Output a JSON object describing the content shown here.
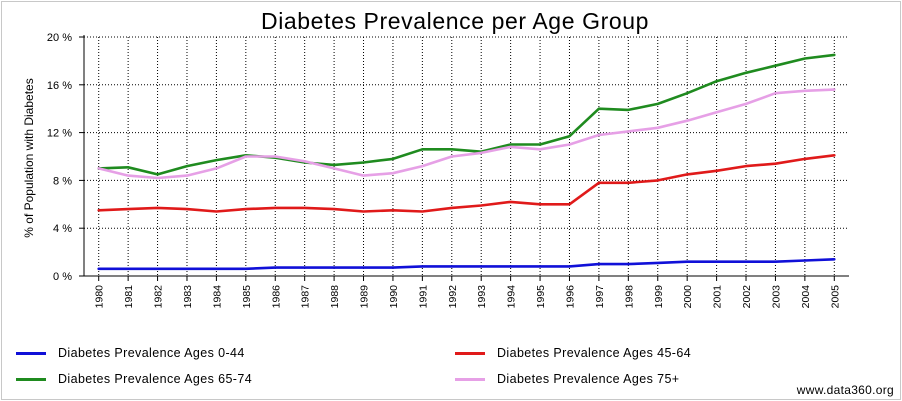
{
  "chart_data": {
    "type": "line",
    "title": "Diabetes Prevalence per Age Group",
    "ylabel": "% of Population with Diabetes",
    "xlabel": "",
    "ylim": [
      0,
      20
    ],
    "y_ticks": [
      0,
      4,
      8,
      12,
      16,
      20
    ],
    "y_tick_labels": [
      "0 %",
      "4 %",
      "8 %",
      "12 %",
      "16 %",
      "20 %"
    ],
    "grid": true,
    "legend_position": "bottom",
    "x": [
      "1980",
      "1981",
      "1982",
      "1983",
      "1984",
      "1985",
      "1986",
      "1987",
      "1988",
      "1989",
      "1990",
      "1991",
      "1992",
      "1993",
      "1994",
      "1995",
      "1996",
      "1997",
      "1998",
      "1999",
      "2000",
      "2001",
      "2002",
      "2003",
      "2004",
      "2005"
    ],
    "series": [
      {
        "name": "Diabetes Prevalence Ages 0-44",
        "color": "#1010d8",
        "values": [
          0.6,
          0.6,
          0.6,
          0.6,
          0.6,
          0.6,
          0.7,
          0.7,
          0.7,
          0.7,
          0.7,
          0.8,
          0.8,
          0.8,
          0.8,
          0.8,
          0.8,
          1.0,
          1.0,
          1.1,
          1.2,
          1.2,
          1.2,
          1.2,
          1.3,
          1.4
        ]
      },
      {
        "name": "Diabetes Prevalence Ages 45-64",
        "color": "#e01a1a",
        "values": [
          5.5,
          5.6,
          5.7,
          5.6,
          5.4,
          5.6,
          5.7,
          5.7,
          5.6,
          5.4,
          5.5,
          5.4,
          5.7,
          5.9,
          6.2,
          6.0,
          6.0,
          7.8,
          7.8,
          8.0,
          8.5,
          8.8,
          9.2,
          9.4,
          9.8,
          10.1
        ]
      },
      {
        "name": "Diabetes Prevalence Ages 65-74",
        "color": "#1f8b1f",
        "values": [
          9.0,
          9.1,
          8.5,
          9.2,
          9.7,
          10.1,
          9.9,
          9.5,
          9.3,
          9.5,
          9.8,
          10.6,
          10.6,
          10.4,
          11.0,
          11.0,
          11.7,
          14.0,
          13.9,
          14.4,
          15.3,
          16.3,
          17.0,
          17.6,
          18.2,
          18.5
        ]
      },
      {
        "name": "Diabetes Prevalence Ages 75+",
        "color": "#e6a0e6",
        "values": [
          9.0,
          8.4,
          8.2,
          8.4,
          9.0,
          10.0,
          10.0,
          9.6,
          9.0,
          8.4,
          8.6,
          9.2,
          10.0,
          10.3,
          10.8,
          10.6,
          11.0,
          11.8,
          12.1,
          12.4,
          13.0,
          13.7,
          14.4,
          15.3,
          15.5,
          15.6
        ]
      }
    ]
  },
  "source": "www.data360.org"
}
